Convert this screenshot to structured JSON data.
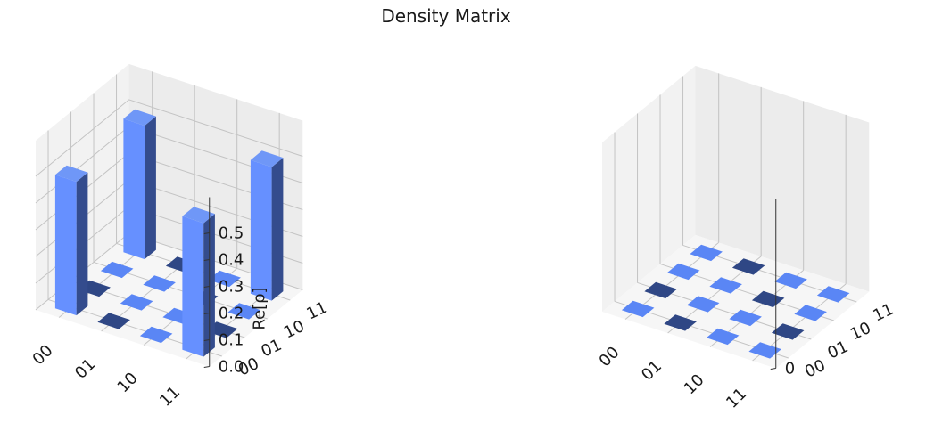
{
  "figure": {
    "title": "Density Matrix"
  },
  "colors": {
    "positive_top": "#6f97f7",
    "positive_front": "#6690ff",
    "positive_side": "#344c8d",
    "flat_tile": "#5a86f5",
    "negative_tile": "#2f4785",
    "pane_left": "#f2f2f2",
    "pane_back": "#ececec",
    "pane_floor": "#f6f6f6"
  },
  "chart_data": [
    {
      "type": "bar3d",
      "title": "",
      "zlabel": "Re[ρ]",
      "x_tick_labels": [
        "00",
        "01",
        "10",
        "11"
      ],
      "y_tick_labels": [
        "00",
        "01",
        "10",
        "11"
      ],
      "z_tick_labels": [
        "0.0",
        "0.1",
        "0.2",
        "0.3",
        "0.4",
        "0.5"
      ],
      "zlim": [
        0,
        0.5
      ],
      "matrix": [
        [
          0.5,
          0,
          0,
          0.5
        ],
        [
          0,
          0,
          0,
          0
        ],
        [
          0,
          0,
          0,
          0
        ],
        [
          0.5,
          0,
          0,
          0.5
        ]
      ]
    },
    {
      "type": "bar3d",
      "title": "",
      "zlabel": "",
      "x_tick_labels": [
        "00",
        "01",
        "10",
        "11"
      ],
      "y_tick_labels": [
        "00",
        "01",
        "10",
        "11"
      ],
      "z_tick_labels": [
        "0"
      ],
      "matrix": [
        [
          0,
          0,
          0,
          0
        ],
        [
          0,
          0,
          0,
          0
        ],
        [
          0,
          0,
          0,
          0
        ],
        [
          0,
          0,
          0,
          0
        ]
      ]
    }
  ]
}
